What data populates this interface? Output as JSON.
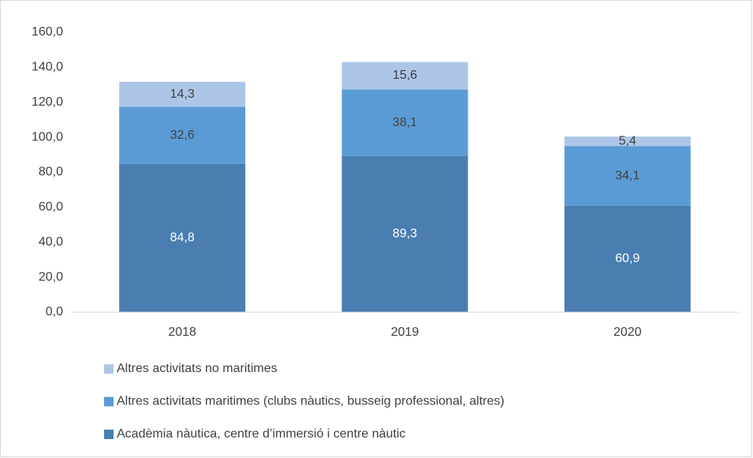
{
  "chart_data": {
    "type": "bar",
    "stacked": true,
    "categories": [
      "2018",
      "2019",
      "2020"
    ],
    "series": [
      {
        "name": "Acadèmia nàutica, centre d’immersió i centre nàutic",
        "color": "#4a7eb0",
        "values": [
          84.8,
          89.3,
          60.9
        ],
        "value_labels": [
          "84,8",
          "89,3",
          "60,9"
        ]
      },
      {
        "name": "Altres activitats maritimes  (clubs nàutics, busseig professional, altres)",
        "color": "#5b9bd5",
        "values": [
          32.6,
          38.1,
          34.1
        ],
        "value_labels": [
          "32,6",
          "38,1",
          "34,1"
        ]
      },
      {
        "name": "Altres activitats no maritimes",
        "color": "#adc6e8",
        "values": [
          14.3,
          15.6,
          5.4
        ],
        "value_labels": [
          "14,3",
          "15,6",
          "5,4"
        ]
      }
    ],
    "ylim": [
      0,
      160
    ],
    "yticks": [
      {
        "value": 0,
        "label": "0,0"
      },
      {
        "value": 20,
        "label": "20,0"
      },
      {
        "value": 40,
        "label": "40,0"
      },
      {
        "value": 60,
        "label": "60,0"
      },
      {
        "value": 80,
        "label": "80,0"
      },
      {
        "value": 100,
        "label": "100,0"
      },
      {
        "value": 120,
        "label": "120,0"
      },
      {
        "value": 140,
        "label": "140,0"
      },
      {
        "value": 160,
        "label": "160,0"
      }
    ],
    "grid": false,
    "legend": "bottom"
  }
}
